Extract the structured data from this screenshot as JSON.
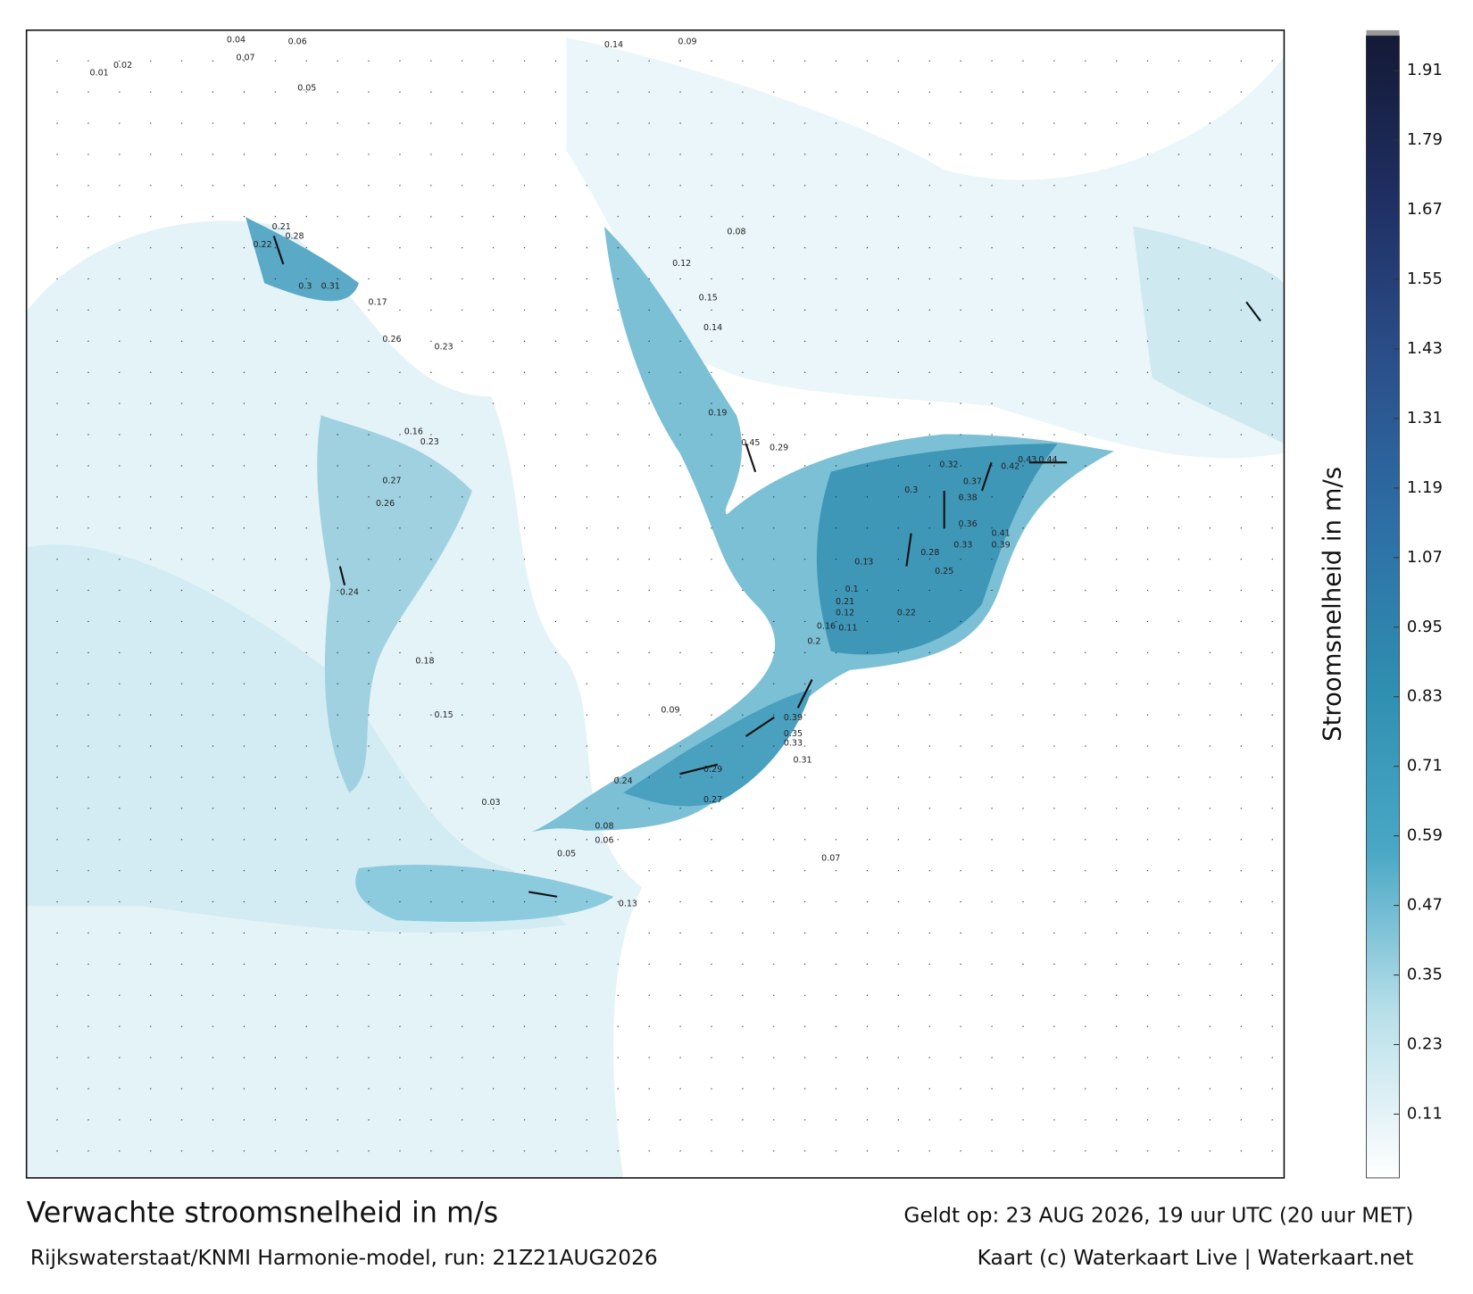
{
  "header": {
    "title": "Verwachte stroomsnelheid in m/s",
    "valid": "Geldt op: 23 AUG 2026, 19 uur UTC (20 uur MET)",
    "source": "Rijkswaterstaat/KNMI Harmonie-model, run: 21Z21AUG2026",
    "credit": "Kaart (c) Waterkaart Live | Waterkaart.net"
  },
  "colorbar": {
    "label": "Stroomsnelheid in m/s",
    "lim": [
      0,
      1.97
    ],
    "ticks": [
      0.11,
      0.23,
      0.35,
      0.47,
      0.59,
      0.71,
      0.83,
      0.95,
      1.07,
      1.19,
      1.31,
      1.43,
      1.55,
      1.67,
      1.79,
      1.91
    ],
    "colors": [
      "#ffffff",
      "#b9e0ea",
      "#4aa8c6",
      "#2f8fb0",
      "#2d6fa6",
      "#2b4f8a",
      "#1f2f63",
      "#141a36"
    ]
  },
  "map_labels": [
    0.04,
    0.06,
    0.02,
    0.07,
    0.14,
    0.09,
    0.05,
    0.01,
    0.21,
    0.28,
    0.22,
    0.3,
    0.31,
    0.17,
    0.26,
    0.23,
    0.16,
    0.23,
    0.27,
    0.26,
    0.24,
    0.18,
    0.15,
    0.08,
    0.12,
    0.19,
    0.15,
    0.14,
    0.29,
    0.45,
    0.32,
    0.3,
    0.42,
    0.43,
    0.44,
    0.37,
    0.38,
    0.36,
    0.41,
    0.39,
    0.33,
    0.28,
    0.25,
    0.22,
    0.39,
    0.35,
    0.33,
    0.31,
    0.24,
    0.29,
    0.27,
    0.2,
    0.21,
    0.16,
    0.11,
    0.13,
    0.1,
    0.12,
    0.07,
    0.09,
    0.03,
    0.05,
    0.06,
    0.08,
    0.13
  ]
}
